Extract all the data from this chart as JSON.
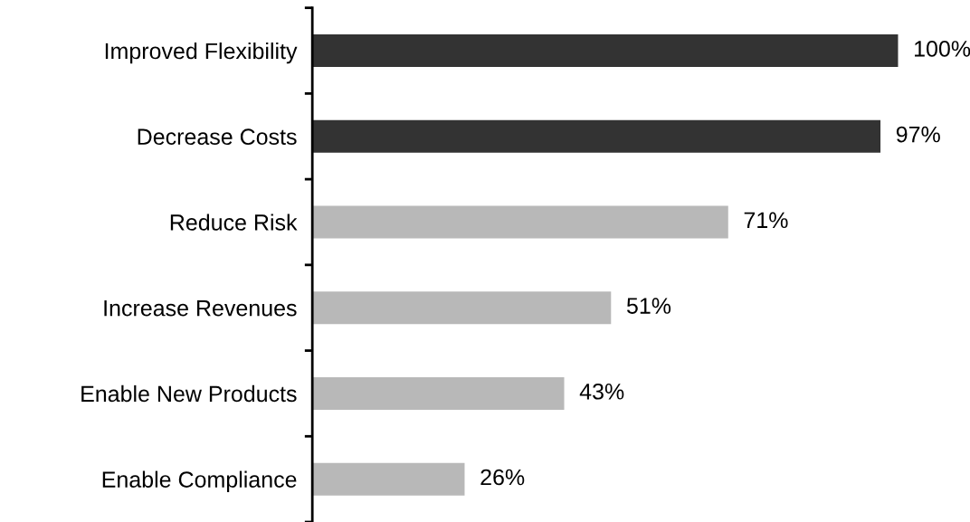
{
  "chart_data": {
    "type": "bar",
    "orientation": "horizontal",
    "categories": [
      "Improved Flexibility",
      "Decrease Costs",
      "Reduce Risk",
      "Increase Revenues",
      "Enable New Products",
      "Enable Compliance"
    ],
    "values": [
      100,
      97,
      71,
      51,
      43,
      26
    ],
    "value_labels": [
      "100%",
      "97%",
      "71%",
      "51%",
      "43%",
      "26%"
    ],
    "colors": [
      "#333333",
      "#333333",
      "#b8b8b8",
      "#b8b8b8",
      "#b8b8b8",
      "#b8b8b8"
    ],
    "grid": false,
    "legend": false
  }
}
